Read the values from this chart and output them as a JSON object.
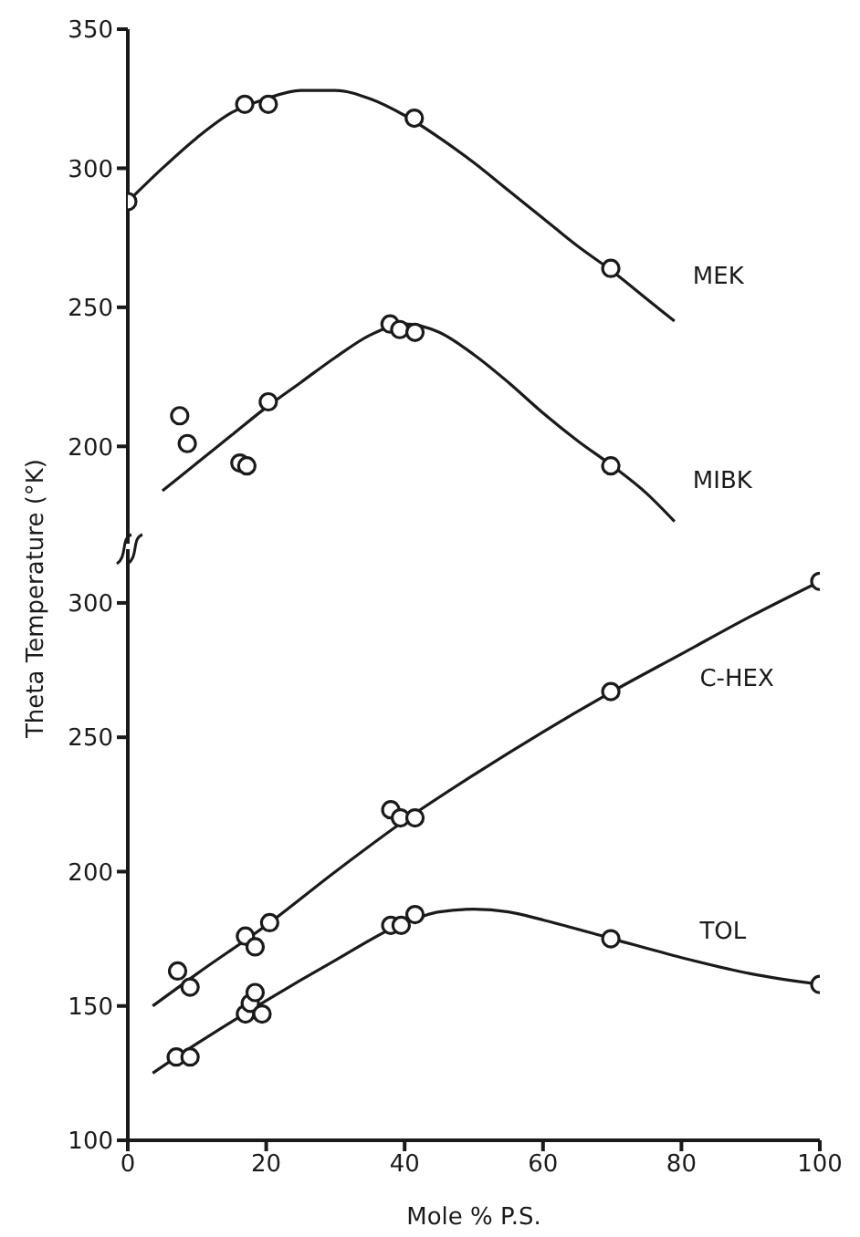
{
  "chart_data": [
    {
      "type": "line",
      "xlim": [
        0,
        100
      ],
      "xticks": [
        0,
        20,
        40,
        60,
        80,
        100
      ],
      "ylim": [
        165,
        350
      ],
      "yticks": [
        200,
        250,
        300,
        350
      ],
      "tick_labels": "y",
      "grid": false,
      "legend": false,
      "series": [
        {
          "type": "scatter",
          "color": "#1a1a1a",
          "marker": "circle",
          "x": [
            0,
            16.9,
            20.3,
            41.4,
            69.8
          ],
          "values": [
            288,
            323,
            323,
            318,
            264
          ]
        },
        {
          "name": "MEK",
          "color": "#1a1a1a",
          "marker": "none",
          "line_style": "solid",
          "x": [
            0,
            5,
            10,
            15,
            20,
            25,
            30,
            35,
            40,
            45,
            50,
            55,
            60,
            65,
            70,
            75,
            79
          ],
          "values": [
            288,
            300,
            311,
            320,
            325,
            328,
            328,
            325,
            319,
            311,
            302,
            292,
            282,
            272,
            263,
            253,
            245
          ]
        },
        {
          "type": "scatter",
          "color": "#1a1a1a",
          "marker": "circle",
          "x": [
            7.5,
            8.6,
            16.2,
            17.2,
            20.3,
            37.9,
            39.3,
            41.5,
            69.8
          ],
          "values": [
            211,
            201,
            194,
            193,
            216,
            244,
            242,
            241,
            193
          ]
        },
        {
          "name": "MIBK",
          "color": "#1a1a1a",
          "marker": "none",
          "line_style": "solid",
          "x": [
            5,
            10,
            15,
            20,
            25,
            30,
            35,
            40,
            45,
            50,
            55,
            60,
            65,
            70,
            75,
            79
          ],
          "values": [
            184,
            194,
            204,
            214,
            223,
            232,
            240,
            244,
            241,
            233,
            223,
            212,
            202,
            193,
            183,
            173
          ]
        }
      ]
    },
    {
      "type": "line",
      "xlabel": "Mole % P.S.",
      "ylabel": "Theta Temperature (°K)",
      "xlim": [
        0,
        100
      ],
      "xticks": [
        0,
        20,
        40,
        60,
        80,
        100
      ],
      "ylim": [
        100,
        320
      ],
      "yticks": [
        100,
        150,
        200,
        250,
        300
      ],
      "grid": false,
      "legend": false,
      "series": [
        {
          "type": "scatter",
          "color": "#1a1a1a",
          "marker": "circle",
          "x": [
            7.2,
            9.0,
            17.0,
            18.4,
            20.5,
            38.0,
            39.4,
            41.5,
            69.8,
            100
          ],
          "values": [
            163,
            157,
            176,
            172,
            181,
            223,
            220,
            220,
            267,
            308
          ]
        },
        {
          "name": "C-HEX",
          "color": "#1a1a1a",
          "marker": "none",
          "line_style": "solid",
          "x": [
            3.6,
            10,
            20,
            30,
            40,
            50,
            60,
            70,
            80,
            90,
            100
          ],
          "values": [
            150,
            162,
            180,
            200,
            219,
            236,
            252,
            267,
            281,
            295,
            308
          ]
        },
        {
          "type": "scatter",
          "color": "#1a1a1a",
          "marker": "circle",
          "x": [
            7.0,
            9.0,
            17.0,
            17.7,
            18.4,
            19.4,
            38.0,
            39.5,
            41.5,
            69.8,
            100
          ],
          "values": [
            131,
            131,
            147,
            151,
            155,
            147,
            180,
            180,
            184,
            175,
            158
          ]
        },
        {
          "name": "TOL",
          "color": "#1a1a1a",
          "marker": "none",
          "line_style": "solid",
          "x": [
            3.6,
            10,
            20,
            30,
            40,
            45,
            50,
            55,
            60,
            70,
            80,
            90,
            100
          ],
          "values": [
            125,
            136,
            152,
            167,
            181,
            185,
            186,
            185,
            182,
            175,
            168,
            162,
            158
          ]
        }
      ]
    }
  ]
}
